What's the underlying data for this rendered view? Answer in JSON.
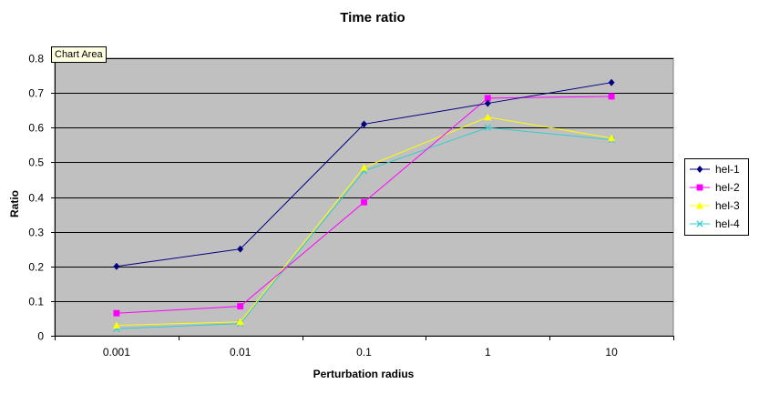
{
  "tooltip": "Chart Area",
  "colors": {
    "plot_background": "#C0C0C0",
    "gridline": "#000000",
    "hel-1": "#000080",
    "hel-2": "#FF00FF",
    "hel-3": "#FFFF00",
    "hel-4": "#33CCCC"
  },
  "chart_data": {
    "type": "line",
    "title": "Time ratio",
    "xlabel": "Perturbation radius",
    "ylabel": "Ratio",
    "categories": [
      "0.001",
      "0.01",
      "0.1",
      "1",
      "10"
    ],
    "ylim": [
      0,
      0.8
    ],
    "yticks": [
      "0",
      "0.1",
      "0.2",
      "0.3",
      "0.4",
      "0.5",
      "0.6",
      "0.7",
      "0.8"
    ],
    "grid": true,
    "legend_position": "right",
    "series": [
      {
        "name": "hel-1",
        "marker": "diamond",
        "values": [
          0.2,
          0.25,
          0.61,
          0.67,
          0.73
        ]
      },
      {
        "name": "hel-2",
        "marker": "square",
        "values": [
          0.065,
          0.085,
          0.385,
          0.685,
          0.69
        ]
      },
      {
        "name": "hel-3",
        "marker": "triangle",
        "values": [
          0.03,
          0.04,
          0.485,
          0.63,
          0.57
        ]
      },
      {
        "name": "hel-4",
        "marker": "x",
        "values": [
          0.02,
          0.035,
          0.475,
          0.6,
          0.565
        ]
      }
    ]
  }
}
